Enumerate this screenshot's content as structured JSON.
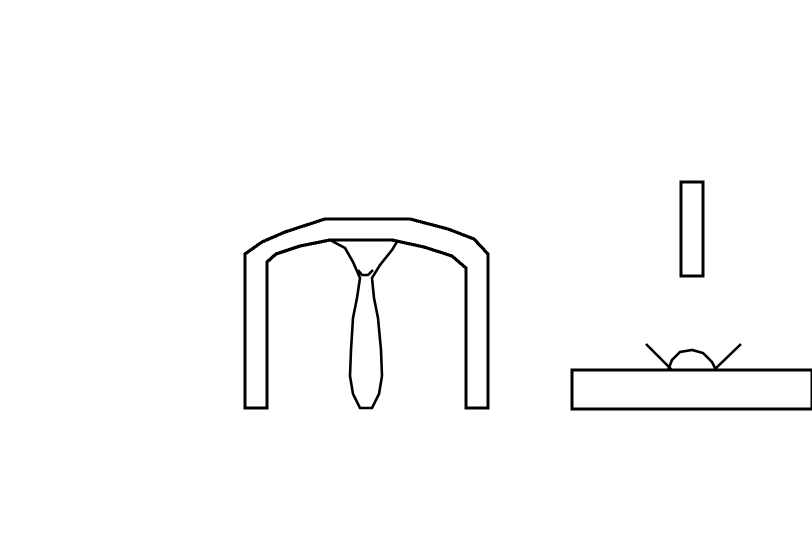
{
  "canvas": {
    "background": "#ffffff",
    "ink": "#000000"
  },
  "icons": [
    {
      "name": "arch-with-drip-icon"
    },
    {
      "name": "falling-bar-icon"
    },
    {
      "name": "splash-on-platform-icon"
    }
  ]
}
